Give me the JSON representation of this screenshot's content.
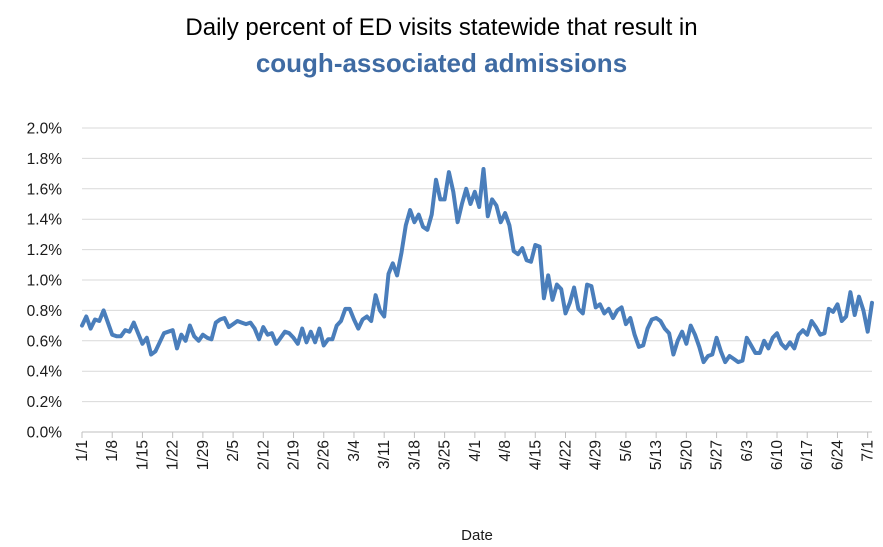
{
  "title_line1": "Daily percent of ED visits statewide that result in",
  "title_line2": "cough-associated admissions",
  "chart_data": {
    "type": "line",
    "xlabel": "Date",
    "ylabel": "",
    "ylim": [
      0,
      0.02
    ],
    "y_ticks": [
      "0.0%",
      "0.2%",
      "0.4%",
      "0.6%",
      "0.8%",
      "1.0%",
      "1.2%",
      "1.4%",
      "1.6%",
      "1.8%",
      "2.0%"
    ],
    "x_ticks": [
      "1/1",
      "1/8",
      "1/15",
      "1/22",
      "1/29",
      "2/5",
      "2/12",
      "2/19",
      "2/26",
      "3/4",
      "3/11",
      "3/18",
      "3/25",
      "4/1",
      "4/8",
      "4/15",
      "4/22",
      "4/29",
      "5/6",
      "5/13",
      "5/20",
      "5/27",
      "6/3",
      "6/10",
      "6/17",
      "6/24",
      "7/1"
    ],
    "grid": true,
    "line_color": "#4A7EBB",
    "series": [
      {
        "name": "",
        "values": [
          0.007,
          0.0076,
          0.0068,
          0.0074,
          0.0073,
          0.008,
          0.0072,
          0.0064,
          0.0063,
          0.0063,
          0.0067,
          0.0066,
          0.0072,
          0.0065,
          0.0058,
          0.0062,
          0.0051,
          0.0053,
          0.0059,
          0.0065,
          0.0066,
          0.0067,
          0.0055,
          0.0064,
          0.006,
          0.007,
          0.0063,
          0.006,
          0.0064,
          0.0062,
          0.0061,
          0.0072,
          0.0074,
          0.0075,
          0.0069,
          0.0071,
          0.0073,
          0.0072,
          0.0071,
          0.0072,
          0.0068,
          0.0061,
          0.0069,
          0.0064,
          0.0065,
          0.0058,
          0.0062,
          0.0066,
          0.0065,
          0.0062,
          0.0058,
          0.0068,
          0.0059,
          0.0066,
          0.0059,
          0.0068,
          0.0057,
          0.0061,
          0.0061,
          0.007,
          0.0073,
          0.0081,
          0.0081,
          0.0074,
          0.0068,
          0.0074,
          0.0076,
          0.0073,
          0.009,
          0.008,
          0.0076,
          0.0104,
          0.0111,
          0.0103,
          0.0118,
          0.0136,
          0.0146,
          0.0138,
          0.0143,
          0.0135,
          0.0133,
          0.0143,
          0.0166,
          0.0153,
          0.0153,
          0.0171,
          0.0158,
          0.0138,
          0.015,
          0.016,
          0.015,
          0.0158,
          0.0148,
          0.0173,
          0.0142,
          0.0153,
          0.0149,
          0.0138,
          0.0144,
          0.0136,
          0.0119,
          0.0117,
          0.0121,
          0.0113,
          0.0112,
          0.0123,
          0.0122,
          0.0088,
          0.0103,
          0.0087,
          0.0097,
          0.0094,
          0.0078,
          0.0085,
          0.0095,
          0.0081,
          0.0078,
          0.0097,
          0.0096,
          0.0082,
          0.0084,
          0.0078,
          0.0081,
          0.0075,
          0.008,
          0.0082,
          0.0071,
          0.0075,
          0.0064,
          0.0056,
          0.0057,
          0.0068,
          0.0074,
          0.0075,
          0.0073,
          0.0068,
          0.0065,
          0.0051,
          0.006,
          0.0066,
          0.0058,
          0.007,
          0.0064,
          0.0056,
          0.0046,
          0.005,
          0.0051,
          0.0062,
          0.0053,
          0.0046,
          0.005,
          0.0048,
          0.0046,
          0.0047,
          0.0062,
          0.0057,
          0.0052,
          0.0052,
          0.006,
          0.0055,
          0.0062,
          0.0065,
          0.0058,
          0.0055,
          0.0059,
          0.0055,
          0.0064,
          0.0067,
          0.0064,
          0.0073,
          0.0069,
          0.0064,
          0.0065,
          0.0081,
          0.0079,
          0.0084,
          0.0073,
          0.0076,
          0.0092,
          0.0077,
          0.0089,
          0.008,
          0.0066,
          0.0085
        ]
      }
    ]
  }
}
